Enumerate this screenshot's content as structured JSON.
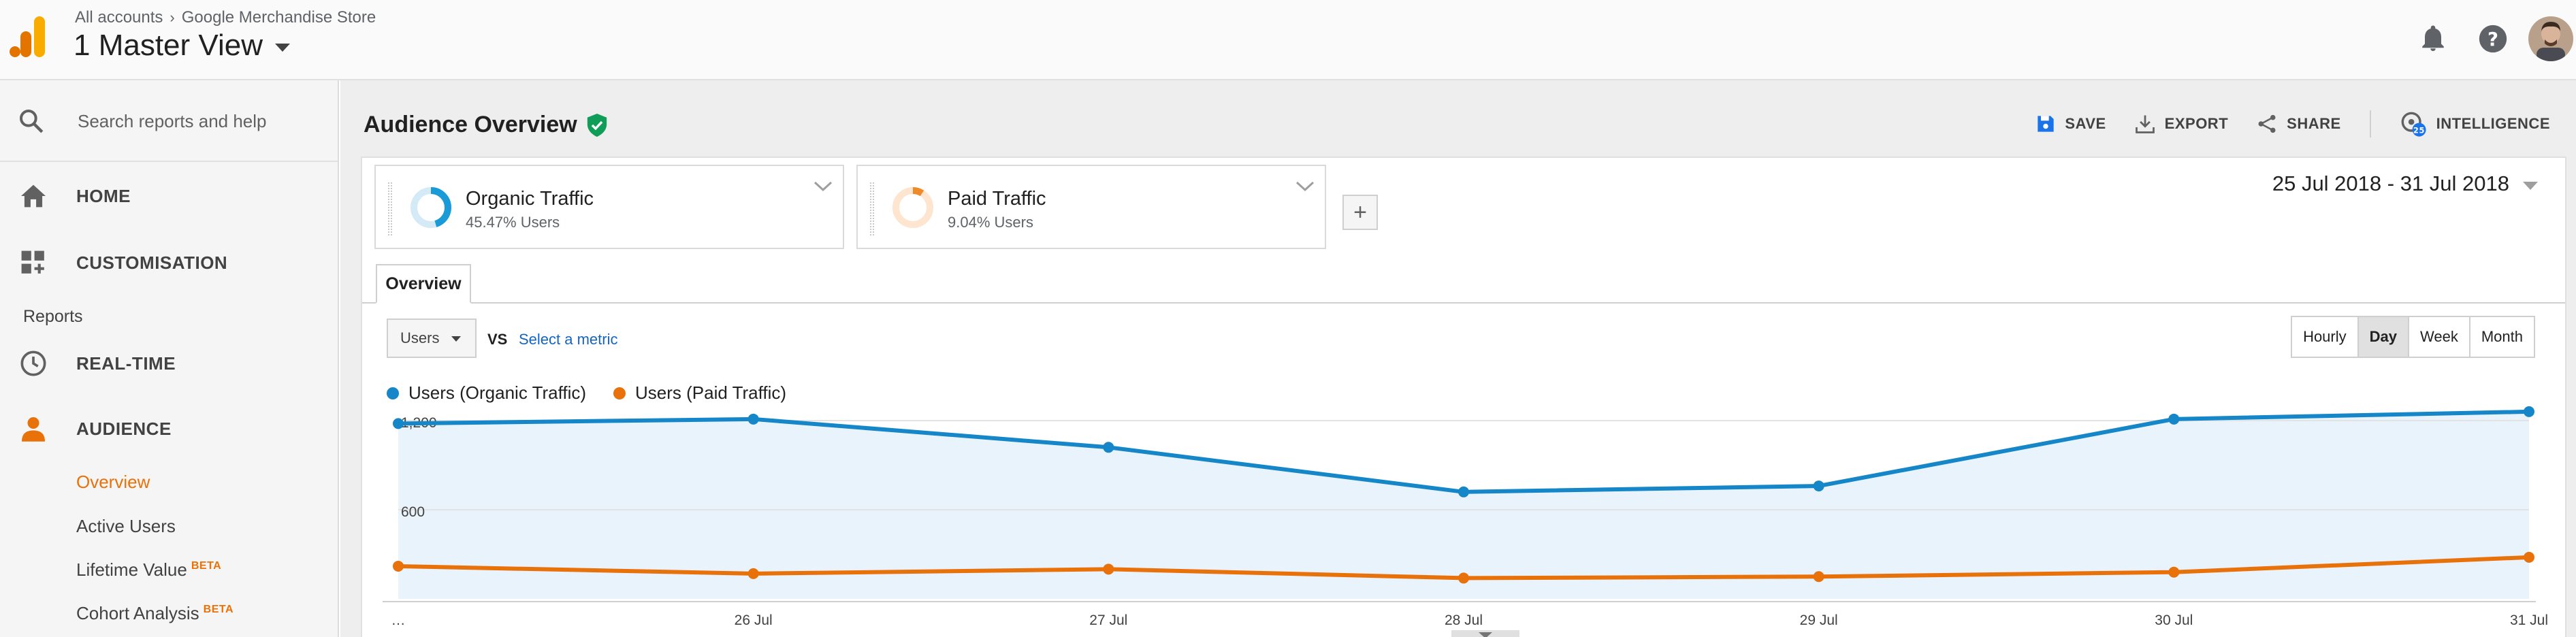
{
  "header": {
    "breadcrumb_root": "All accounts",
    "breadcrumb_property": "Google Merchandise Store",
    "view_name": "1 Master View"
  },
  "sidebar": {
    "search_placeholder": "Search reports and help",
    "home_label": "HOME",
    "customisation_label": "CUSTOMISATION",
    "reports_label": "Reports",
    "realtime_label": "REAL-TIME",
    "audience_label": "AUDIENCE",
    "audience_items": [
      {
        "label": "Overview",
        "beta": ""
      },
      {
        "label": "Active Users",
        "beta": ""
      },
      {
        "label": "Lifetime Value",
        "beta": "BETA"
      },
      {
        "label": "Cohort Analysis",
        "beta": "BETA"
      }
    ]
  },
  "main": {
    "title": "Audience Overview",
    "actions": {
      "save": "SAVE",
      "export": "EXPORT",
      "share": "SHARE",
      "intelligence": "INTELLIGENCE"
    },
    "segments": [
      {
        "name": "Organic Traffic",
        "desc": "45.47% Users",
        "share": 0.4547,
        "color": "#1a9ad6"
      },
      {
        "name": "Paid Traffic",
        "desc": "9.04% Users",
        "share": 0.0904,
        "color": "#ef8a2a"
      }
    ],
    "add_segment": "+",
    "date_range": "25 Jul 2018 - 31 Jul 2018",
    "tab": "Overview",
    "metric": "Users",
    "vs": "VS",
    "select_metric": "Select a metric",
    "granularity": [
      "Hourly",
      "Day",
      "Week",
      "Month"
    ],
    "granularity_selected": "Day"
  },
  "chart_data": {
    "type": "line",
    "categories": [
      "…",
      "26 Jul",
      "27 Jul",
      "28 Jul",
      "29 Jul",
      "30 Jul",
      "31 Jul"
    ],
    "y_ticks": [
      "1,200",
      "600"
    ],
    "y_tick_values": [
      1200,
      600
    ],
    "ylim": [
      0,
      1200
    ],
    "grid": true,
    "legend": "top-left",
    "series": [
      {
        "name": "Users (Organic Traffic)",
        "color": "#1586c7",
        "fill": "#e8f3fb",
        "values": [
          1180,
          1210,
          1020,
          720,
          760,
          1210,
          1260
        ]
      },
      {
        "name": "Users (Paid Traffic)",
        "color": "#e8710a",
        "fill": "",
        "values": [
          220,
          170,
          200,
          140,
          150,
          180,
          280
        ]
      }
    ]
  }
}
